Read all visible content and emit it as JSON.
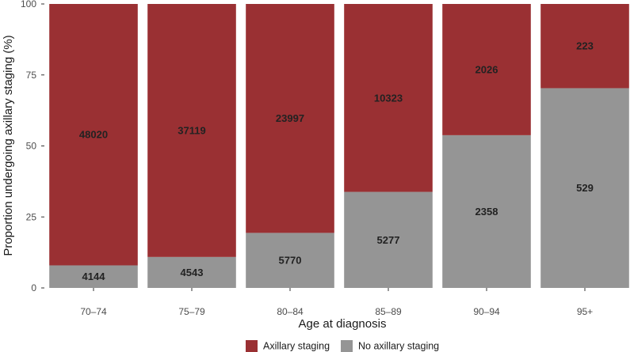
{
  "chart_data": {
    "type": "bar",
    "stacked": true,
    "normalized": true,
    "categories": [
      "70–74",
      "75–79",
      "80–84",
      "85–89",
      "90–94",
      "95+"
    ],
    "series": [
      {
        "name": "No axillary staging",
        "values": [
          4144,
          4543,
          5770,
          5277,
          2358,
          529
        ],
        "color": "#959595"
      },
      {
        "name": "Axillary staging",
        "values": [
          48020,
          37119,
          23997,
          10323,
          2026,
          223
        ],
        "color": "#9a3033"
      }
    ],
    "title": "",
    "xlabel": "Age at diagnosis",
    "ylabel": "Proportion undergoing axillary staging (%)",
    "ylim": [
      0,
      100
    ],
    "yticks": [
      0,
      25,
      50,
      75,
      100
    ],
    "legend_position": "bottom",
    "legend_order": [
      "Axillary staging",
      "No axillary staging"
    ],
    "grid": false
  }
}
